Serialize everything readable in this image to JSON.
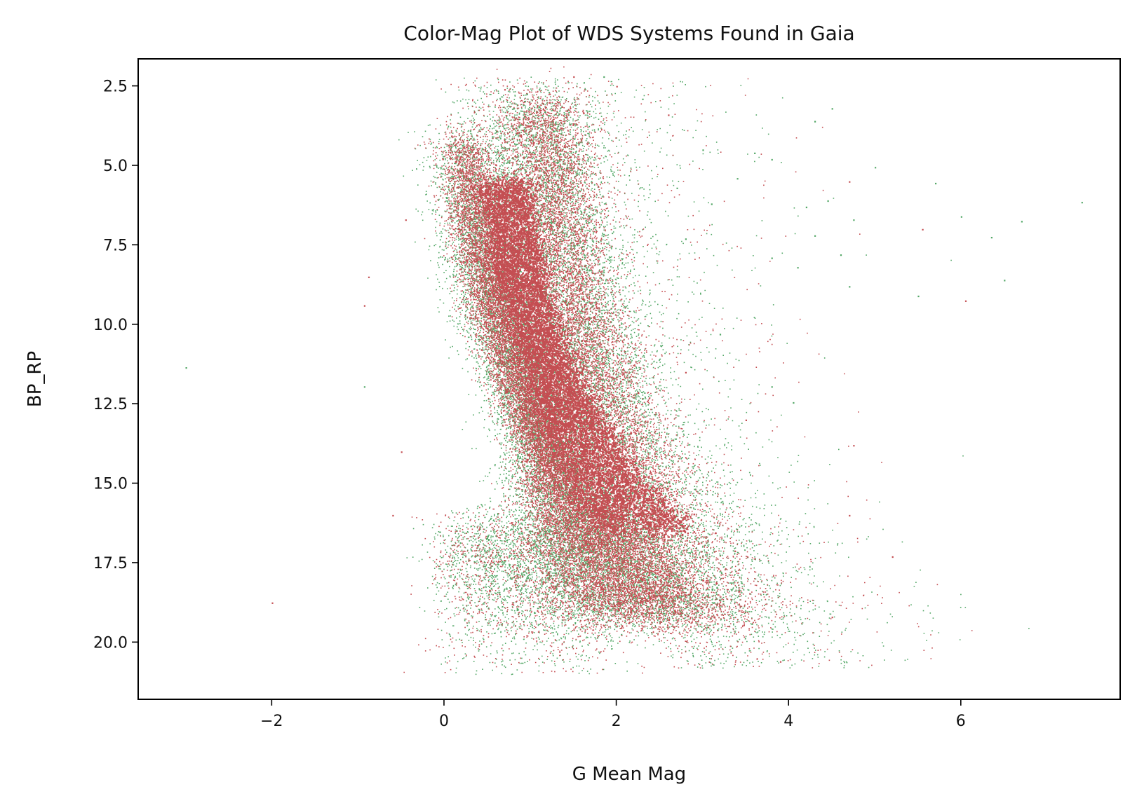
{
  "chart_data": {
    "type": "scatter",
    "title": "Color-Mag Plot of WDS Systems Found in Gaia",
    "xlabel": "G Mean Mag",
    "ylabel": "BP_RP",
    "xlim": [
      -3.55,
      7.85
    ],
    "ylim": [
      1.65,
      21.8
    ],
    "y_inverted": true,
    "grid": false,
    "x_ticks": [
      -2,
      0,
      2,
      4,
      6
    ],
    "x_tick_labels": [
      "−2",
      "0",
      "2",
      "4",
      "6"
    ],
    "y_ticks": [
      2.5,
      5.0,
      7.5,
      10.0,
      12.5,
      15.0,
      17.5,
      20.0
    ],
    "y_tick_labels": [
      "2.5",
      "5.0",
      "7.5",
      "10.0",
      "12.5",
      "15.0",
      "17.5",
      "20.0"
    ],
    "colors": {
      "series_a": "#55a868",
      "series_b": "#c44e52"
    },
    "series": [
      {
        "color": "#55a868",
        "points": [
          [
            -3.0,
            11.35
          ],
          [
            -0.93,
            11.95
          ],
          [
            0.3,
            3.9
          ],
          [
            0.8,
            3.2
          ],
          [
            1.1,
            2.6
          ],
          [
            1.85,
            2.2
          ],
          [
            2.3,
            2.9
          ],
          [
            3.0,
            4.5
          ],
          [
            3.4,
            5.4
          ],
          [
            3.6,
            4.6
          ],
          [
            3.8,
            4.8
          ],
          [
            4.2,
            6.3
          ],
          [
            4.45,
            6.1
          ],
          [
            4.75,
            6.7
          ],
          [
            5.0,
            5.05
          ],
          [
            5.7,
            5.55
          ],
          [
            6.0,
            6.6
          ],
          [
            6.35,
            7.25
          ],
          [
            6.7,
            6.75
          ],
          [
            7.4,
            6.15
          ],
          [
            4.3,
            3.6
          ],
          [
            4.5,
            3.2
          ],
          [
            5.5,
            9.1
          ],
          [
            6.5,
            8.6
          ],
          [
            4.3,
            7.2
          ],
          [
            3.8,
            7.9
          ],
          [
            3.8,
            11.95
          ],
          [
            4.05,
            12.45
          ],
          [
            3.2,
            10.3
          ],
          [
            4.1,
            8.2
          ],
          [
            4.6,
            7.8
          ],
          [
            4.7,
            8.8
          ],
          [
            2.7,
            5.7
          ],
          [
            2.8,
            7.3
          ],
          [
            3.1,
            6.2
          ]
        ]
      },
      {
        "color": "#c44e52",
        "points": [
          [
            -2.0,
            18.75
          ],
          [
            -0.88,
            8.5
          ],
          [
            -0.93,
            9.4
          ],
          [
            -0.6,
            16.0
          ],
          [
            -0.5,
            14.0
          ],
          [
            -0.45,
            6.7
          ],
          [
            0.7,
            2.6
          ],
          [
            2.0,
            2.5
          ],
          [
            2.6,
            3.4
          ],
          [
            4.7,
            5.5
          ],
          [
            5.55,
            7.0
          ],
          [
            6.05,
            9.25
          ],
          [
            4.75,
            13.8
          ],
          [
            4.7,
            16.0
          ],
          [
            5.2,
            17.3
          ],
          [
            3.9,
            20.6
          ],
          [
            4.5,
            19.2
          ],
          [
            3.5,
            13.0
          ],
          [
            2.8,
            11.5
          ],
          [
            1.5,
            2.2
          ]
        ]
      }
    ]
  }
}
